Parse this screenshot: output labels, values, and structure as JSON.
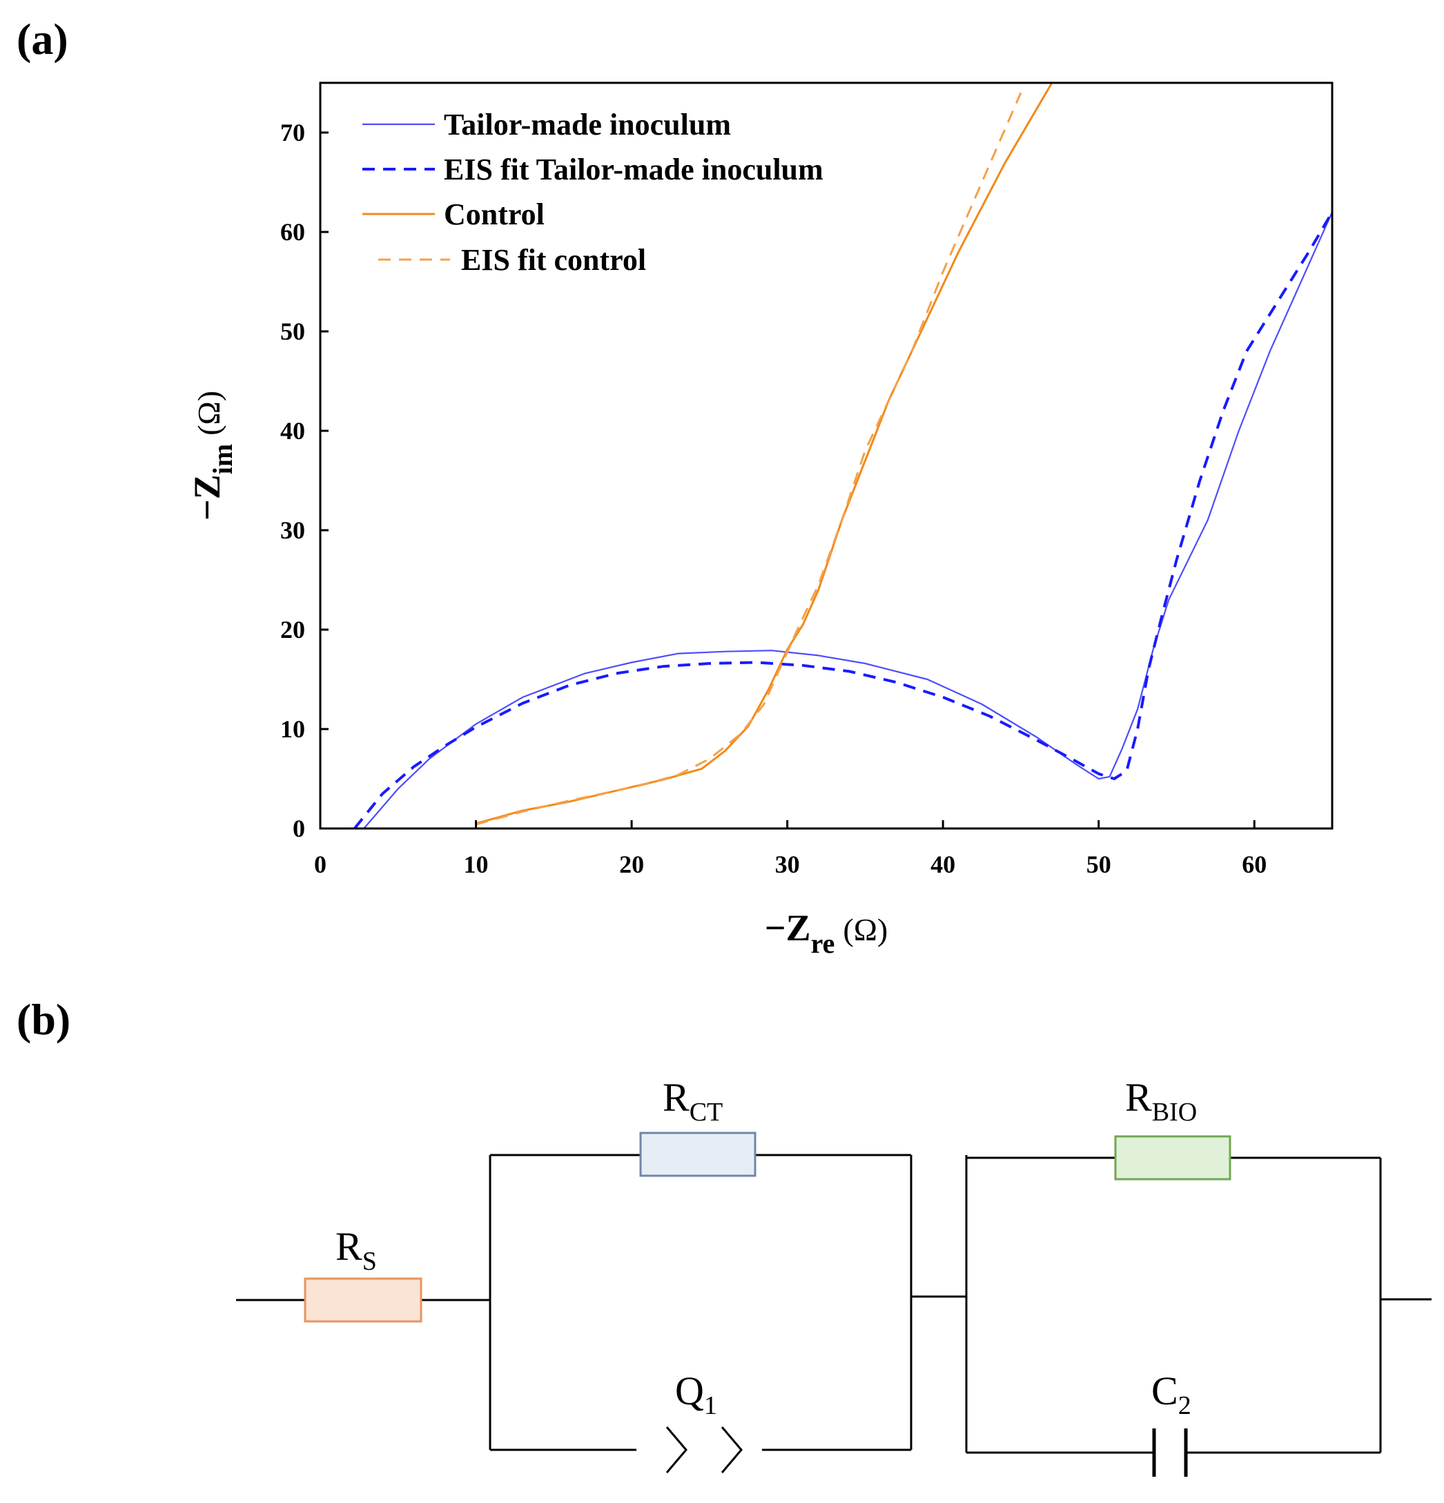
{
  "panels": {
    "a": "(a)",
    "b": "(b)"
  },
  "chart_data": {
    "type": "line",
    "x_label": {
      "main": "−Z",
      "sub": "re",
      "unit": "(Ω)"
    },
    "y_label": {
      "main": "−Z",
      "sub": "im",
      "unit": "(Ω)"
    },
    "xlim": [
      0,
      65
    ],
    "ylim": [
      0,
      75
    ],
    "x_ticks": [
      0,
      10,
      20,
      30,
      40,
      50,
      60
    ],
    "y_ticks": [
      0,
      10,
      20,
      30,
      40,
      50,
      60,
      70
    ],
    "grid": false,
    "legend_position": "top-left",
    "series": [
      {
        "name": "Tailor-made inoculum",
        "color": "#4d4dff",
        "style": "solid",
        "width": 2.2,
        "points": [
          [
            2.8,
            0
          ],
          [
            5,
            4
          ],
          [
            7,
            7
          ],
          [
            10,
            10.5
          ],
          [
            13,
            13.2
          ],
          [
            17,
            15.6
          ],
          [
            20,
            16.7
          ],
          [
            23,
            17.6
          ],
          [
            26,
            17.8
          ],
          [
            29,
            17.9
          ],
          [
            32,
            17.4
          ],
          [
            35,
            16.6
          ],
          [
            39,
            15
          ],
          [
            42.5,
            12.5
          ],
          [
            46,
            9.2
          ],
          [
            48.5,
            6.5
          ],
          [
            50,
            5
          ],
          [
            50.7,
            5.2
          ],
          [
            51.5,
            8
          ],
          [
            52.5,
            12
          ],
          [
            53.5,
            18
          ],
          [
            54.5,
            23
          ],
          [
            57,
            31
          ],
          [
            59,
            40
          ],
          [
            61,
            48
          ],
          [
            63,
            55
          ],
          [
            65,
            62
          ]
        ]
      },
      {
        "name": "EIS fit Tailor-made inoculum",
        "color": "#1a1aff",
        "style": "dashed",
        "width": 4,
        "points": [
          [
            2.2,
            0
          ],
          [
            4,
            3.5
          ],
          [
            6,
            6.2
          ],
          [
            8,
            8.3
          ],
          [
            10,
            10.2
          ],
          [
            13,
            12.6
          ],
          [
            16,
            14.4
          ],
          [
            19,
            15.6
          ],
          [
            22,
            16.3
          ],
          [
            25,
            16.6
          ],
          [
            28,
            16.7
          ],
          [
            31,
            16.4
          ],
          [
            34,
            15.8
          ],
          [
            37,
            14.7
          ],
          [
            40,
            13.2
          ],
          [
            43,
            11.3
          ],
          [
            46,
            8.9
          ],
          [
            48.5,
            6.8
          ],
          [
            50,
            5.5
          ],
          [
            51,
            5
          ],
          [
            51.8,
            5.8
          ],
          [
            52.5,
            10
          ],
          [
            53.2,
            16
          ],
          [
            54,
            21
          ],
          [
            55,
            27
          ],
          [
            56.5,
            35
          ],
          [
            58,
            42
          ],
          [
            59.5,
            48
          ],
          [
            61.5,
            53
          ],
          [
            63.5,
            58
          ],
          [
            65,
            62
          ]
        ]
      },
      {
        "name": "Control",
        "color": "#f28a19",
        "style": "solid",
        "width": 3,
        "points": [
          [
            10,
            0.5
          ],
          [
            13,
            1.8
          ],
          [
            16,
            2.7
          ],
          [
            19,
            3.8
          ],
          [
            22,
            4.9
          ],
          [
            24.5,
            6
          ],
          [
            26,
            7.8
          ],
          [
            27.5,
            10.3
          ],
          [
            28.8,
            14
          ],
          [
            30,
            18
          ],
          [
            31,
            20.5
          ],
          [
            32,
            24
          ],
          [
            33.5,
            31
          ],
          [
            35,
            37
          ],
          [
            36.5,
            43
          ],
          [
            38,
            48
          ],
          [
            41,
            58
          ],
          [
            44,
            67
          ],
          [
            47,
            75
          ]
        ]
      },
      {
        "name": "EIS fit control",
        "color": "#f5a04a",
        "style": "dashed",
        "width": 3,
        "points": [
          [
            10,
            0.4
          ],
          [
            13,
            1.7
          ],
          [
            16,
            2.8
          ],
          [
            19,
            3.8
          ],
          [
            21,
            4.5
          ],
          [
            23,
            5.4
          ],
          [
            25,
            7
          ],
          [
            27,
            9.5
          ],
          [
            28.5,
            12.5
          ],
          [
            29.5,
            16
          ],
          [
            30.5,
            19.5
          ],
          [
            32,
            24.5
          ],
          [
            33.5,
            31
          ],
          [
            35,
            38
          ],
          [
            36.5,
            43
          ],
          [
            38,
            48
          ],
          [
            40,
            56
          ],
          [
            42.5,
            65
          ],
          [
            45,
            74
          ]
        ]
      }
    ]
  },
  "circuit": {
    "rs": {
      "main": "R",
      "sub": "S"
    },
    "rct": {
      "main": "R",
      "sub": "CT"
    },
    "q1": {
      "main": "Q",
      "sub": "1"
    },
    "rbio": {
      "main": "R",
      "sub": "BIO"
    },
    "c2": {
      "main": "C",
      "sub": "2"
    },
    "colors": {
      "rs_fill": "#fbe3d6",
      "rs_stroke": "#e6955f",
      "rct_fill": "#e7edf4",
      "rct_stroke": "#6f86a8",
      "rbio_fill": "#e1f0d8",
      "rbio_stroke": "#6fa84f"
    }
  }
}
